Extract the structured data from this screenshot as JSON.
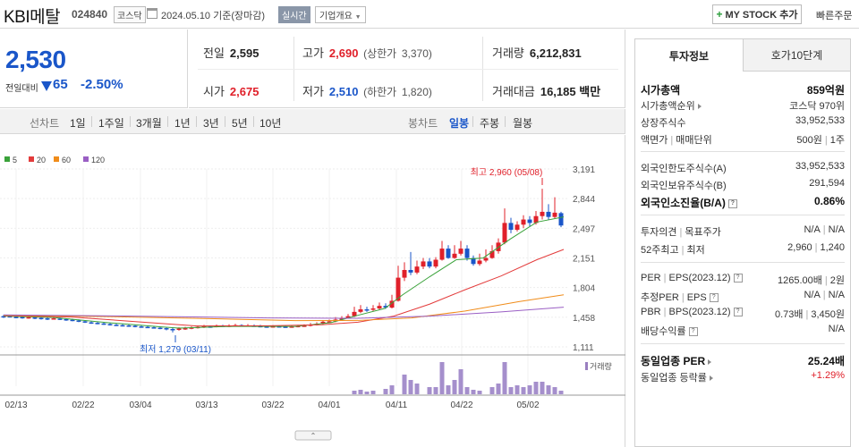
{
  "header": {
    "name": "KBI메탈",
    "code": "024840",
    "market": "코스닥",
    "date": "2024.05.10 기준(장마감)",
    "realtime": "실시간",
    "company_info": "기업개요",
    "mystock": "MY STOCK 추가",
    "quick_order": "빠른주문"
  },
  "price": {
    "current": "2,530",
    "change_label": "전일대비",
    "change": "65",
    "change_pct": "-2.50%"
  },
  "quote": {
    "prev_label": "전일",
    "prev": "2,595",
    "high_label": "고가",
    "high": "2,690",
    "upper_label": "(상한가",
    "upper": "3,370)",
    "volume_label": "거래량",
    "volume": "6,212,831",
    "open_label": "시가",
    "open": "2,675",
    "low_label": "저가",
    "low": "2,510",
    "lower_label": "(하한가",
    "lower": "1,820)",
    "amount_label": "거래대금",
    "amount": "16,185",
    "amount_unit": "백만"
  },
  "periods": {
    "line_label": "선차트",
    "items": [
      "1일",
      "1주일",
      "3개월",
      "1년",
      "3년",
      "5년",
      "10년"
    ],
    "candle_label": "봉차트",
    "candles": [
      "일봉",
      "주봉",
      "월봉"
    ],
    "active_candle": "일봉"
  },
  "chart_data": {
    "type": "candlestick",
    "legend": [
      {
        "name": "5",
        "color": "#3aa23a"
      },
      {
        "name": "20",
        "color": "#e33b3b"
      },
      {
        "name": "60",
        "color": "#f08c1a"
      },
      {
        "name": "120",
        "color": "#9a5fc4"
      }
    ],
    "y_ticks": [
      "3,191",
      "2,844",
      "2,497",
      "2,151",
      "1,804",
      "1,458",
      "1,111"
    ],
    "ylim": [
      1111,
      3191
    ],
    "x_ticks": [
      "02/13",
      "02/22",
      "03/04",
      "03/13",
      "03/22",
      "04/01",
      "04/11",
      "04/22",
      "05/02"
    ],
    "annotations": {
      "high": "최고 2,960 (05/08)",
      "low": "최저 1,279 (03/11)"
    },
    "volume_label": "거래량",
    "up_color": "#e0202a",
    "down_color": "#1a56c9"
  },
  "panel": {
    "tab_active": "투자정보",
    "tab_other": "호가10단계",
    "market_cap_label": "시가총액",
    "market_cap": "859억원",
    "rank_label": "시가총액순위",
    "rank": "코스닥 970위",
    "shares_label": "상장주식수",
    "shares": "33,952,533",
    "par_label": "액면가",
    "unit_label": "매매단위",
    "par": "500원",
    "unit": "1주",
    "foreign_limit_label": "외국인한도주식수(A)",
    "foreign_limit": "33,952,533",
    "foreign_hold_label": "외국인보유주식수(B)",
    "foreign_hold": "291,594",
    "foreign_ratio_label": "외국인소진율(B/A)",
    "foreign_ratio": "0.86%",
    "opinion_label": "투자의견",
    "target_label": "목표주가",
    "opinion": "N/A",
    "target": "N/A",
    "w52_high_label": "52주최고",
    "w52_low_label": "최저",
    "w52_high": "2,960",
    "w52_low": "1,240",
    "per_label": "PER",
    "eps_label": "EPS(2023.12)",
    "per": "1265.00배",
    "eps": "2원",
    "est_per_label": "추정PER",
    "est_eps_label": "EPS",
    "est_per": "N/A",
    "est_eps": "N/A",
    "pbr_label": "PBR",
    "bps_label": "BPS(2023.12)",
    "pbr": "0.73배",
    "bps": "3,450원",
    "div_label": "배당수익률",
    "div": "N/A",
    "ind_per_label": "동일업종 PER",
    "ind_per": "25.24배",
    "ind_rate_label": "동일업종 등락률",
    "ind_rate": "+1.29%"
  }
}
